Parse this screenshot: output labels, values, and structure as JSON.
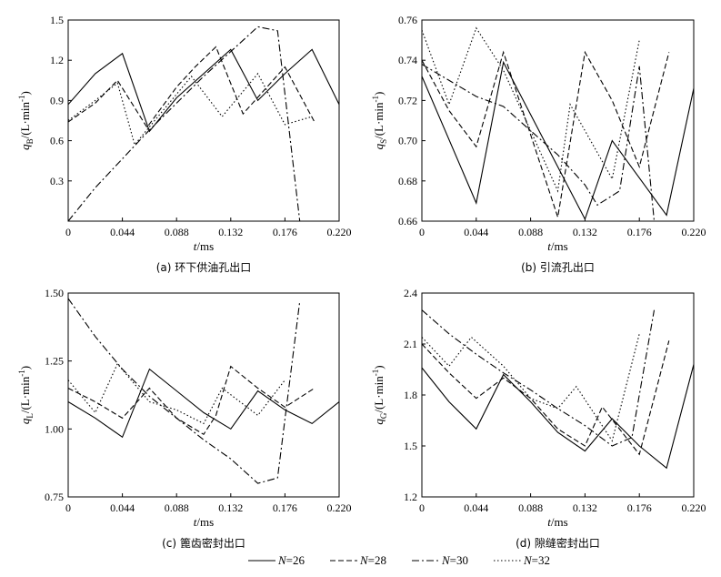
{
  "figure_title": "",
  "legend": [
    {
      "name": "N=26",
      "var": "N",
      "eq": "=26",
      "dash": "solid"
    },
    {
      "name": "N=28",
      "var": "N",
      "eq": "=28",
      "dash": "dashed"
    },
    {
      "name": "N=30",
      "var": "N",
      "eq": "=30",
      "dash": "dashdot"
    },
    {
      "name": "N=32",
      "var": "N",
      "eq": "=32",
      "dash": "dotted"
    }
  ],
  "chart_data": [
    {
      "id": "a",
      "type": "line",
      "title": "(a) 环下供油孔出口",
      "xlabel": {
        "var": "t",
        "unit": "/ms"
      },
      "ylabel": {
        "var": "q",
        "sub": "B",
        "unit": "/(L·min",
        "sup": "-1",
        "close": ")"
      },
      "xlim": [
        0,
        0.22
      ],
      "ylim": [
        0,
        1.5
      ],
      "xticks": [
        "0",
        "0.044",
        "0.088",
        "0.132",
        "0.176",
        "0.220"
      ],
      "yticks": [
        "0.3",
        "0.6",
        "0.9",
        "1.2",
        "1.5"
      ],
      "series": [
        {
          "name": "N=26",
          "x": [
            0,
            0.022,
            0.044,
            0.066,
            0.088,
            0.132,
            0.154,
            0.176,
            0.198,
            0.22
          ],
          "y": [
            0.87,
            1.1,
            1.25,
            0.67,
            0.92,
            1.28,
            0.9,
            1.1,
            1.28,
            0.87
          ]
        },
        {
          "name": "N=28",
          "x": [
            0,
            0.022,
            0.04,
            0.064,
            0.088,
            0.103,
            0.12,
            0.142,
            0.176,
            0.2
          ],
          "y": [
            0.74,
            0.88,
            1.05,
            0.7,
            1.0,
            1.15,
            1.3,
            0.8,
            1.15,
            0.74
          ]
        },
        {
          "name": "N=30",
          "x": [
            0,
            0.022,
            0.066,
            0.11,
            0.154,
            0.17,
            0.188
          ],
          "y": [
            0.0,
            0.25,
            0.68,
            1.08,
            1.45,
            1.42,
            0.0
          ]
        },
        {
          "name": "N=32",
          "x": [
            0,
            0.022,
            0.04,
            0.054,
            0.1,
            0.125,
            0.154,
            0.176,
            0.198
          ],
          "y": [
            0.75,
            0.9,
            1.03,
            0.57,
            1.08,
            0.78,
            1.1,
            0.72,
            0.78
          ]
        }
      ]
    },
    {
      "id": "b",
      "type": "line",
      "title": "(b) 引流孔出口",
      "xlabel": {
        "var": "t",
        "unit": "/ms"
      },
      "ylabel": {
        "var": "q",
        "sub": "S",
        "unit": "/(L·min",
        "sup": "-1",
        "close": ")"
      },
      "xlim": [
        0,
        0.22
      ],
      "ylim": [
        0.66,
        0.76
      ],
      "xticks": [
        "0",
        "0.044",
        "0.088",
        "0.132",
        "0.176",
        "0.220"
      ],
      "yticks": [
        "0.66",
        "0.68",
        "0.70",
        "0.72",
        "0.74",
        "0.76"
      ],
      "series": [
        {
          "name": "N=26",
          "x": [
            0,
            0.044,
            0.066,
            0.132,
            0.154,
            0.198,
            0.22
          ],
          "y": [
            0.732,
            0.669,
            0.739,
            0.661,
            0.7,
            0.663,
            0.726
          ]
        },
        {
          "name": "N=28",
          "x": [
            0,
            0.022,
            0.044,
            0.066,
            0.11,
            0.132,
            0.154,
            0.176,
            0.2
          ],
          "y": [
            0.74,
            0.715,
            0.697,
            0.744,
            0.662,
            0.744,
            0.72,
            0.687,
            0.744
          ]
        },
        {
          "name": "N=30",
          "x": [
            0,
            0.044,
            0.066,
            0.088,
            0.11,
            0.132,
            0.142,
            0.16,
            0.176,
            0.188
          ],
          "y": [
            0.738,
            0.722,
            0.717,
            0.705,
            0.693,
            0.678,
            0.668,
            0.675,
            0.737,
            0.66
          ]
        },
        {
          "name": "N=32",
          "x": [
            0,
            0.022,
            0.044,
            0.066,
            0.11,
            0.12,
            0.132,
            0.154,
            0.176
          ],
          "y": [
            0.755,
            0.718,
            0.756,
            0.735,
            0.675,
            0.718,
            0.705,
            0.681,
            0.75
          ]
        }
      ]
    },
    {
      "id": "c",
      "type": "line",
      "title": "(c) 篦齿密封出口",
      "xlabel": {
        "var": "t",
        "unit": "/ms"
      },
      "ylabel": {
        "var": "q",
        "sub": "L",
        "unit": "/(L·min",
        "sup": "-1",
        "close": ")"
      },
      "xlim": [
        0,
        0.22
      ],
      "ylim": [
        0.75,
        1.5
      ],
      "xticks": [
        "0",
        "0.044",
        "0.088",
        "0.132",
        "0.176",
        "0.220"
      ],
      "yticks": [
        "0.75",
        "1.00",
        "1.25",
        "1.50"
      ],
      "series": [
        {
          "name": "N=26",
          "x": [
            0,
            0.022,
            0.044,
            0.066,
            0.088,
            0.11,
            0.132,
            0.154,
            0.176,
            0.198,
            0.22
          ],
          "y": [
            1.1,
            1.04,
            0.97,
            1.22,
            1.14,
            1.06,
            1.0,
            1.14,
            1.07,
            1.02,
            1.1
          ]
        },
        {
          "name": "N=28",
          "x": [
            0,
            0.022,
            0.044,
            0.066,
            0.088,
            0.11,
            0.12,
            0.132,
            0.154,
            0.176,
            0.2
          ],
          "y": [
            1.15,
            1.1,
            1.04,
            1.15,
            1.04,
            0.98,
            1.05,
            1.23,
            1.15,
            1.08,
            1.15
          ]
        },
        {
          "name": "N=30",
          "x": [
            0,
            0.022,
            0.044,
            0.066,
            0.088,
            0.11,
            0.132,
            0.154,
            0.17,
            0.188
          ],
          "y": [
            1.48,
            1.34,
            1.22,
            1.12,
            1.04,
            0.96,
            0.89,
            0.8,
            0.82,
            1.47
          ]
        },
        {
          "name": "N=32",
          "x": [
            0,
            0.022,
            0.04,
            0.066,
            0.088,
            0.11,
            0.125,
            0.154,
            0.176
          ],
          "y": [
            1.18,
            1.06,
            1.24,
            1.1,
            1.07,
            1.02,
            1.15,
            1.05,
            1.18
          ]
        }
      ]
    },
    {
      "id": "d",
      "type": "line",
      "title": "(d) 隙缝密封出口",
      "xlabel": {
        "var": "t",
        "unit": "/ms"
      },
      "ylabel": {
        "var": "q",
        "sub": "G",
        "unit": "/(L·min",
        "sup": "-1",
        "close": ")"
      },
      "xlim": [
        0,
        0.22
      ],
      "ylim": [
        1.2,
        2.4
      ],
      "xticks": [
        "0",
        "0.044",
        "0.088",
        "0.132",
        "0.176",
        "0.220"
      ],
      "yticks": [
        "1.2",
        "1.5",
        "1.8",
        "2.1",
        "2.4"
      ],
      "series": [
        {
          "name": "N=26",
          "x": [
            0,
            0.022,
            0.044,
            0.066,
            0.088,
            0.11,
            0.132,
            0.154,
            0.176,
            0.198,
            0.22
          ],
          "y": [
            1.96,
            1.76,
            1.6,
            1.92,
            1.76,
            1.58,
            1.47,
            1.66,
            1.5,
            1.37,
            1.98
          ]
        },
        {
          "name": "N=28",
          "x": [
            0,
            0.022,
            0.044,
            0.066,
            0.088,
            0.11,
            0.132,
            0.146,
            0.176,
            0.2
          ],
          "y": [
            2.1,
            1.93,
            1.78,
            1.9,
            1.78,
            1.6,
            1.5,
            1.73,
            1.45,
            2.12
          ]
        },
        {
          "name": "N=30",
          "x": [
            0,
            0.022,
            0.044,
            0.066,
            0.088,
            0.11,
            0.132,
            0.154,
            0.17,
            0.188
          ],
          "y": [
            2.3,
            2.16,
            2.04,
            1.93,
            1.83,
            1.72,
            1.62,
            1.5,
            1.55,
            2.3
          ]
        },
        {
          "name": "N=32",
          "x": [
            0,
            0.022,
            0.04,
            0.066,
            0.088,
            0.11,
            0.125,
            0.154,
            0.176
          ],
          "y": [
            2.14,
            1.97,
            2.14,
            1.97,
            1.78,
            1.72,
            1.85,
            1.53,
            2.16
          ]
        }
      ]
    }
  ]
}
